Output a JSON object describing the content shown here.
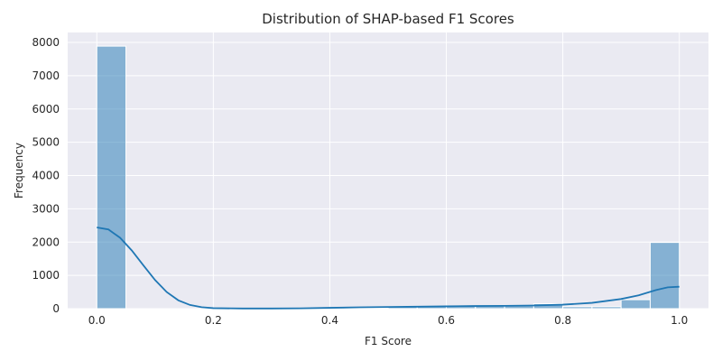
{
  "chart_data": {
    "type": "bar",
    "title": "Distribution of SHAP-based F1 Scores",
    "xlabel": "F1 Score",
    "ylabel": "Frequency",
    "xlim": [
      -0.05,
      1.05
    ],
    "ylim": [
      0,
      8300
    ],
    "xticks": [
      "0.0",
      "0.2",
      "0.4",
      "0.6",
      "0.8",
      "1.0"
    ],
    "yticks": [
      "0",
      "1000",
      "2000",
      "3000",
      "4000",
      "5000",
      "6000",
      "7000",
      "8000"
    ],
    "grid": true,
    "bin_edges": [
      0.0,
      0.05,
      0.1,
      0.15,
      0.2,
      0.25,
      0.3,
      0.35,
      0.4,
      0.45,
      0.5,
      0.55,
      0.6,
      0.65,
      0.7,
      0.75,
      0.8,
      0.85,
      0.9,
      0.95,
      1.0
    ],
    "values": [
      7890,
      0,
      0,
      0,
      0,
      0,
      0,
      0,
      0,
      20,
      60,
      70,
      80,
      90,
      90,
      150,
      60,
      60,
      270,
      1990
    ],
    "kde": {
      "x": [
        0.0,
        0.02,
        0.04,
        0.06,
        0.08,
        0.1,
        0.12,
        0.14,
        0.16,
        0.18,
        0.2,
        0.25,
        0.3,
        0.35,
        0.4,
        0.45,
        0.5,
        0.55,
        0.6,
        0.65,
        0.7,
        0.75,
        0.8,
        0.85,
        0.9,
        0.93,
        0.96,
        0.98,
        1.0
      ],
      "y": [
        2440,
        2380,
        2130,
        1750,
        1300,
        860,
        500,
        250,
        110,
        45,
        15,
        5,
        5,
        10,
        25,
        40,
        50,
        60,
        70,
        80,
        85,
        95,
        120,
        175,
        290,
        400,
        560,
        640,
        660
      ]
    }
  }
}
